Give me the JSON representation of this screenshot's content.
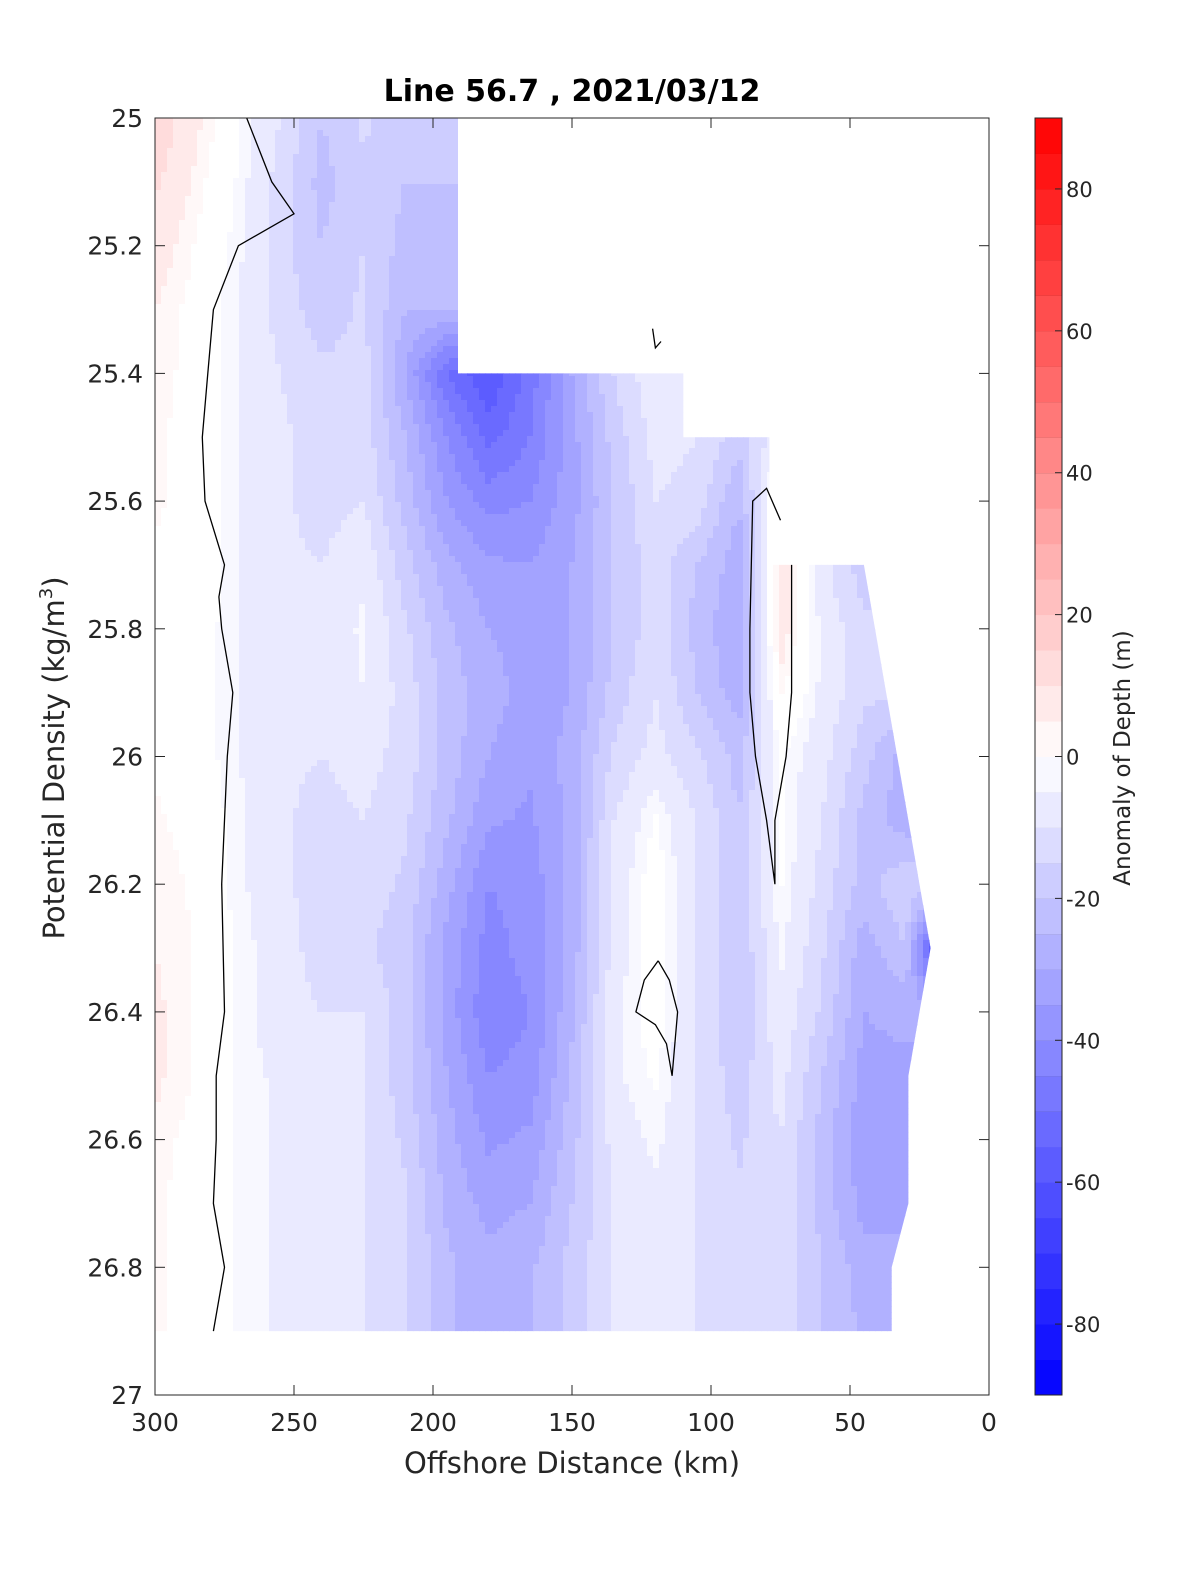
{
  "chart_data": {
    "type": "contourf",
    "title": "Line 56.7 , 2021/03/12",
    "xlabel": "Offshore Distance (km)",
    "ylabel_main": "Potential Density (kg/m",
    "ylabel_sup": "3",
    "ylabel_close": ")",
    "colorbar_label": "Anomaly of Depth (m)",
    "x_axis": {
      "range": [
        300,
        0
      ],
      "reversed": true,
      "ticks": [
        300,
        250,
        200,
        150,
        100,
        50,
        0
      ],
      "tick_labels": [
        "300",
        "250",
        "200",
        "150",
        "100",
        "50",
        "0"
      ]
    },
    "y_axis": {
      "range": [
        25,
        27
      ],
      "reversed": true,
      "ticks": [
        25,
        25.2,
        25.4,
        25.6,
        25.8,
        26,
        26.2,
        26.4,
        26.6,
        26.8,
        27
      ],
      "tick_labels": [
        "25",
        "25.2",
        "25.4",
        "25.6",
        "25.8",
        "26",
        "26.2",
        "26.4",
        "26.6",
        "26.8",
        "27"
      ]
    },
    "colorbar": {
      "range": [
        -90,
        90
      ],
      "level_step": 5,
      "ticks": [
        -80,
        -60,
        -40,
        -20,
        0,
        20,
        40,
        60,
        80
      ],
      "tick_labels": [
        "-80",
        "-60",
        "-40",
        "-20",
        "0",
        "20",
        "40",
        "60",
        "80"
      ],
      "colormap": {
        "negative": "#0000ff",
        "zero": "#ffffff",
        "positive": "#ff0000"
      }
    },
    "data_region_outline": [
      [
        300,
        25
      ],
      [
        191,
        25
      ],
      [
        191,
        25.4
      ],
      [
        110,
        25.4
      ],
      [
        110,
        25.5
      ],
      [
        79,
        25.5
      ],
      [
        79,
        25.7
      ],
      [
        45,
        25.7
      ],
      [
        29,
        26.1
      ],
      [
        21,
        26.3
      ],
      [
        29,
        26.5
      ],
      [
        29,
        26.7
      ],
      [
        35,
        26.8
      ],
      [
        35,
        26.9
      ],
      [
        300,
        26.9
      ]
    ],
    "anomaly_grid": {
      "x": [
        300,
        285,
        270,
        255,
        240,
        225,
        210,
        195,
        180,
        165,
        150,
        135,
        120,
        105,
        90,
        75,
        60,
        45,
        30,
        20
      ],
      "y": [
        25,
        25.1,
        25.2,
        25.3,
        25.4,
        25.5,
        25.6,
        25.7,
        25.8,
        25.9,
        26,
        26.1,
        26.2,
        26.3,
        26.4,
        26.5,
        26.6,
        26.7,
        26.8,
        26.9
      ],
      "values": [
        [
          14,
          6,
          -2,
          -10,
          -20,
          -14,
          -18,
          null,
          null,
          null,
          null,
          null,
          null,
          null,
          null,
          null,
          null,
          null,
          null,
          null
        ],
        [
          11,
          4,
          -3,
          -12,
          -22,
          -16,
          -20,
          null,
          null,
          null,
          null,
          null,
          null,
          null,
          null,
          null,
          null,
          null,
          null,
          null
        ],
        [
          8,
          2,
          -4,
          -13,
          -20,
          -15,
          -22,
          null,
          null,
          null,
          null,
          null,
          null,
          null,
          null,
          null,
          null,
          null,
          null,
          null
        ],
        [
          5,
          1,
          -5,
          -12,
          -18,
          -14,
          -25,
          null,
          null,
          null,
          null,
          null,
          null,
          null,
          null,
          null,
          null,
          null,
          null,
          null
        ],
        [
          4,
          1,
          -5,
          -10,
          -14,
          -13,
          -30,
          -50,
          -60,
          -48,
          -30,
          -15,
          -6,
          -8,
          null,
          null,
          null,
          null,
          null,
          null
        ],
        [
          3,
          1,
          -5,
          -9,
          -12,
          -12,
          -25,
          -40,
          -52,
          -45,
          -32,
          -18,
          -8,
          -10,
          -18,
          -6,
          null,
          null,
          null,
          null
        ],
        [
          3,
          1,
          -5,
          -9,
          -12,
          -10,
          -22,
          -35,
          -42,
          -40,
          -32,
          -20,
          -10,
          -12,
          -25,
          6,
          null,
          null,
          null,
          null
        ],
        [
          2,
          1,
          -5,
          -9,
          -10,
          -6,
          -18,
          -28,
          -34,
          -35,
          -30,
          -20,
          -12,
          -20,
          -28,
          8,
          -8,
          -18,
          null,
          null
        ],
        [
          1,
          0,
          -5,
          -9,
          -9,
          -4,
          -14,
          -24,
          -30,
          -32,
          -30,
          -20,
          -12,
          -22,
          -30,
          8,
          -6,
          -14,
          null,
          null
        ],
        [
          1,
          0,
          -5,
          -9,
          -9,
          -5,
          -12,
          -22,
          -28,
          -32,
          -30,
          -18,
          -10,
          -20,
          -28,
          3,
          -6,
          -14,
          null,
          null
        ],
        [
          2,
          0,
          -5,
          -9,
          -10,
          -8,
          -12,
          -22,
          -30,
          -34,
          -28,
          -14,
          -8,
          -14,
          -22,
          -2,
          -8,
          -18,
          -28,
          null
        ],
        [
          3,
          1,
          -4,
          -9,
          -12,
          -10,
          -14,
          -24,
          -34,
          -36,
          -28,
          -10,
          -2,
          -10,
          -20,
          -2,
          -10,
          -22,
          -28,
          null
        ],
        [
          4,
          2,
          -4,
          -9,
          -12,
          -12,
          -16,
          -28,
          -40,
          -38,
          -28,
          -8,
          0,
          -10,
          -20,
          -2,
          -12,
          -22,
          -16,
          null
        ],
        [
          5,
          2,
          -3,
          -8,
          -12,
          -14,
          -18,
          -32,
          -42,
          -38,
          -28,
          -8,
          0,
          -10,
          -20,
          -4,
          -14,
          -28,
          -20,
          -58
        ],
        [
          6,
          2,
          -3,
          -8,
          -10,
          -10,
          -18,
          -32,
          -44,
          -40,
          -26,
          -6,
          0,
          -10,
          -20,
          -6,
          -16,
          -30,
          -28,
          null
        ],
        [
          6,
          2,
          -3,
          -6,
          -8,
          -10,
          -18,
          -30,
          -40,
          -38,
          -24,
          -6,
          -2,
          -10,
          -18,
          -8,
          -20,
          -32,
          -32,
          null
        ],
        [
          4,
          1,
          -3,
          -6,
          -8,
          -10,
          -16,
          -28,
          -36,
          -34,
          -22,
          -8,
          -4,
          -10,
          -16,
          -10,
          -22,
          -34,
          -34,
          null
        ],
        [
          3,
          1,
          -3,
          -6,
          -8,
          -10,
          -14,
          -26,
          -32,
          -30,
          -20,
          -10,
          -6,
          -10,
          -14,
          -10,
          -22,
          -32,
          null,
          null
        ],
        [
          3,
          1,
          -3,
          -6,
          -8,
          -10,
          -14,
          -24,
          -28,
          -26,
          -18,
          -10,
          -8,
          -10,
          -14,
          -12,
          -20,
          -28,
          null,
          null
        ],
        [
          3,
          1,
          -3,
          -6,
          -8,
          -10,
          -14,
          -24,
          -28,
          -26,
          -18,
          -10,
          -8,
          -10,
          -14,
          -12,
          -20,
          -26,
          null,
          null
        ]
      ]
    },
    "zero_contours": [
      [
        [
          267,
          25
        ],
        [
          258,
          25.1
        ],
        [
          250,
          25.15
        ],
        [
          270,
          25.2
        ],
        [
          279,
          25.3
        ],
        [
          281,
          25.4
        ],
        [
          283,
          25.5
        ],
        [
          282,
          25.6
        ],
        [
          275,
          25.7
        ],
        [
          277,
          25.75
        ],
        [
          276,
          25.8
        ],
        [
          272,
          25.9
        ],
        [
          274,
          26
        ],
        [
          276,
          26.2
        ],
        [
          275,
          26.4
        ],
        [
          278,
          26.5
        ],
        [
          278,
          26.6
        ],
        [
          279,
          26.7
        ],
        [
          275,
          26.8
        ],
        [
          279,
          26.9
        ]
      ],
      [
        [
          75,
          25.63
        ],
        [
          80,
          25.58
        ],
        [
          85,
          25.6
        ],
        [
          86,
          25.8
        ],
        [
          86,
          25.9
        ],
        [
          84,
          26
        ],
        [
          80,
          26.1
        ],
        [
          77,
          26.2
        ],
        [
          77,
          26.1
        ],
        [
          73,
          26
        ],
        [
          71,
          25.9
        ],
        [
          71,
          25.7
        ]
      ],
      [
        [
          119,
          26.32
        ],
        [
          115,
          26.35
        ],
        [
          112,
          26.4
        ],
        [
          114,
          26.5
        ],
        [
          116,
          26.45
        ],
        [
          120,
          26.42
        ],
        [
          127,
          26.4
        ],
        [
          124,
          26.35
        ],
        [
          119,
          26.32
        ]
      ],
      [
        [
          121,
          25.33
        ],
        [
          120,
          25.36
        ],
        [
          118,
          25.35
        ]
      ]
    ]
  }
}
